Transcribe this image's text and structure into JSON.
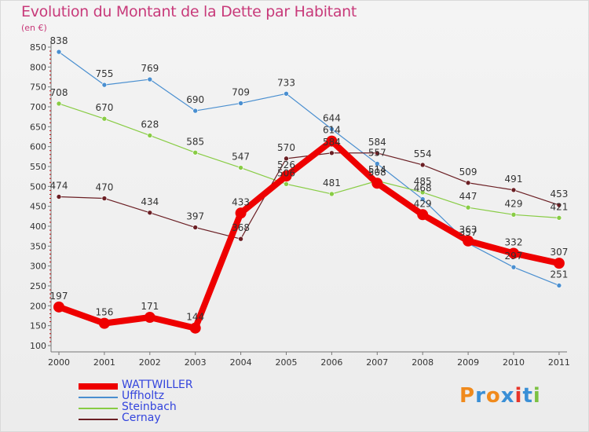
{
  "title": "Evolution du Montant de la Dette par Habitant",
  "unit": "(en €)",
  "logo": {
    "letters": [
      "P",
      "r",
      "o",
      "x",
      "i",
      "t",
      "i"
    ],
    "colors": [
      "#f08a1c",
      "#3a8fd6",
      "#f08a1c",
      "#3a8fd6",
      "#e8352a",
      "#3a8fd6",
      "#7cc142"
    ]
  },
  "chart_data": {
    "type": "line",
    "title": "Evolution du Montant de la Dette par Habitant",
    "ylabel": "(en €)",
    "xlabel": "",
    "x": [
      "2000",
      "2001",
      "2002",
      "2003",
      "2004",
      "2005",
      "2006",
      "2007",
      "2008",
      "2009",
      "2010",
      "2011"
    ],
    "ylim": [
      100,
      850
    ],
    "yticks": [
      100,
      150,
      200,
      250,
      300,
      350,
      400,
      450,
      500,
      550,
      600,
      650,
      700,
      750,
      800,
      850
    ],
    "grid": false,
    "legend": "bottom-left",
    "series": [
      {
        "name": "WATTWILLER",
        "color": "#ee0000",
        "values": [
          197,
          156,
          171,
          144,
          433,
          526,
          614,
          508,
          429,
          363,
          332,
          307
        ]
      },
      {
        "name": "Uffholtz",
        "color": "#4a8fd0",
        "values": [
          838,
          755,
          769,
          690,
          709,
          733,
          644,
          557,
          468,
          357,
          297,
          251
        ]
      },
      {
        "name": "Steinbach",
        "color": "#88cc44",
        "values": [
          708,
          670,
          628,
          585,
          547,
          506,
          481,
          514,
          485,
          447,
          429,
          421
        ]
      },
      {
        "name": "Cernay",
        "color": "#6b1f24",
        "values": [
          474,
          470,
          434,
          397,
          368,
          570,
          584,
          584,
          554,
          509,
          491,
          453
        ]
      }
    ]
  }
}
